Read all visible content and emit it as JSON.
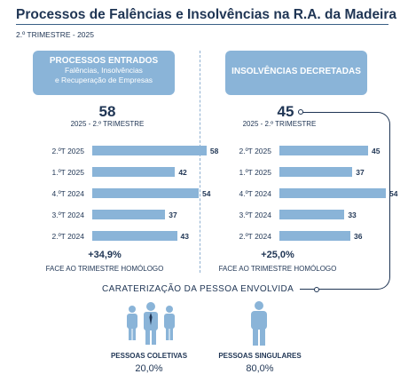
{
  "title": "Processos de Falências e Insolvências na R.A. da Madeira",
  "subtitle": "2.º TRIMESTRE - 2025",
  "left_panel": {
    "heading": "PROCESSOS ENTRADOS",
    "subheading_1": "Falências, Insolvências",
    "subheading_2": "e Recuperação de Empresas",
    "value": "58",
    "value_caption": "2025 - 2.º TRIMESTRE",
    "bars": [
      {
        "label": "2.ºT 2025",
        "value": 58
      },
      {
        "label": "1.ºT 2025",
        "value": 42
      },
      {
        "label": "4.ºT 2024",
        "value": 54
      },
      {
        "label": "3.ºT 2024",
        "value": 37
      },
      {
        "label": "2.ºT 2024",
        "value": 43
      }
    ],
    "change": "+34,9%",
    "change_caption": "FACE AO TRIMESTRE HOMÓLOGO"
  },
  "right_panel": {
    "heading": "INSOLVÊNCIAS DECRETADAS",
    "value": "45",
    "value_caption": "2025 - 2.º TRIMESTRE",
    "bars": [
      {
        "label": "2.ºT 2025",
        "value": 45
      },
      {
        "label": "1.ºT 2025",
        "value": 37
      },
      {
        "label": "4.ºT 2024",
        "value": 54
      },
      {
        "label": "3.ºT 2024",
        "value": 33
      },
      {
        "label": "2.ºT 2024",
        "value": 36
      }
    ],
    "change": "+25,0%",
    "change_caption": "FACE AO TRIMESTRE HOMÓLOGO"
  },
  "characterization": {
    "label": "CARATERIZAÇÃO DA PESSOA ENVOLVIDA",
    "coletivas_label": "PESSOAS COLETIVAS",
    "coletivas_value": "20,0%",
    "singulares_label": "PESSOAS SINGULARES",
    "singulares_value": "80,0%"
  },
  "colors": {
    "accent": "#8ab4d8",
    "text": "#1f3554",
    "background": "#ffffff"
  }
}
